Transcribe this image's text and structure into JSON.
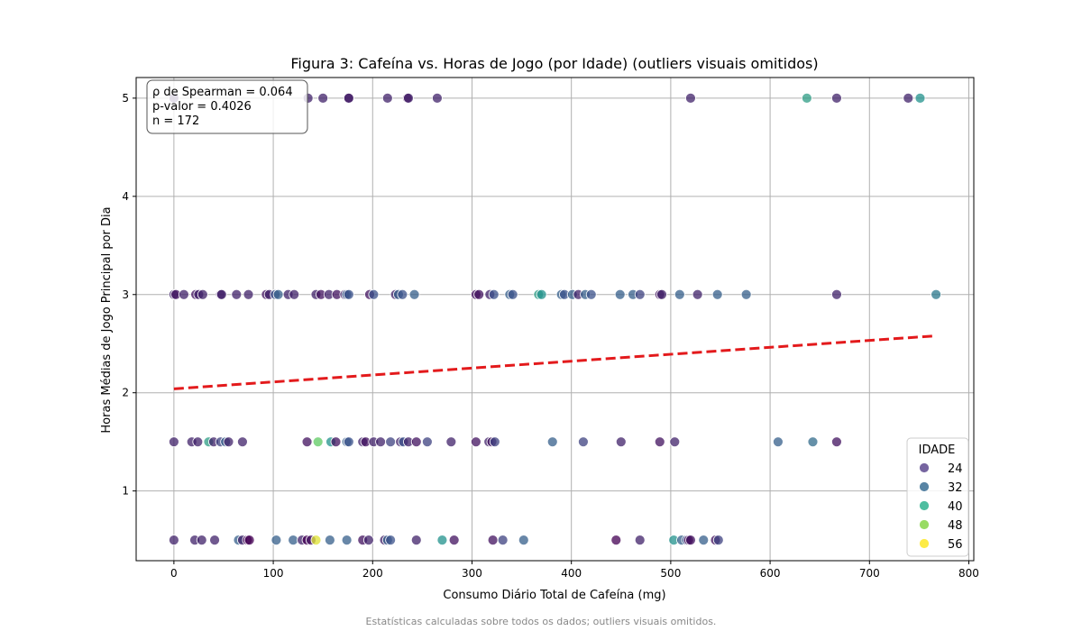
{
  "chart_data": {
    "type": "scatter",
    "title": "Figura 3: Cafeína vs. Horas de Jogo (por Idade) (outliers visuais omitidos)",
    "xlabel": "Consumo Diário Total de Cafeína (mg)",
    "ylabel": "Horas Médias de Jogo Principal por Dia",
    "xlim": [
      -38,
      805
    ],
    "ylim": [
      0.29,
      5.21
    ],
    "xticks": [
      0,
      100,
      200,
      300,
      400,
      500,
      600,
      700,
      800
    ],
    "yticks": [
      1,
      2,
      3,
      4,
      5
    ],
    "grid": true,
    "legend_position": "bottom-right",
    "legend": {
      "title": "IDADE",
      "entries": [
        {
          "label": "24",
          "color": "#5e4a8f"
        },
        {
          "label": "32",
          "color": "#3b6f94"
        },
        {
          "label": "40",
          "color": "#2fb38f"
        },
        {
          "label": "48",
          "color": "#86d549"
        },
        {
          "label": "56",
          "color": "#fde725"
        }
      ]
    },
    "stats_box": [
      "ρ de Spearman = 0.064",
      "p-valor = 0.4026",
      "n = 172"
    ],
    "trend_line": {
      "color": "#e31a1c",
      "style": "dashed",
      "x": [
        0,
        767
      ],
      "y": [
        2.04,
        2.58
      ]
    },
    "points": [
      {
        "x": 0,
        "y": 5,
        "age": 22
      },
      {
        "x": 135,
        "y": 5,
        "age": 22
      },
      {
        "x": 150,
        "y": 5,
        "age": 22
      },
      {
        "x": 176,
        "y": 5,
        "age": 18
      },
      {
        "x": 176,
        "y": 5,
        "age": 22
      },
      {
        "x": 215,
        "y": 5,
        "age": 22
      },
      {
        "x": 235,
        "y": 5,
        "age": 18
      },
      {
        "x": 236,
        "y": 5,
        "age": 22
      },
      {
        "x": 265,
        "y": 5,
        "age": 22
      },
      {
        "x": 520,
        "y": 5,
        "age": 22
      },
      {
        "x": 637,
        "y": 5,
        "age": 40
      },
      {
        "x": 667,
        "y": 5,
        "age": 22
      },
      {
        "x": 739,
        "y": 5,
        "age": 22
      },
      {
        "x": 751,
        "y": 5,
        "age": 38
      },
      {
        "x": 0,
        "y": 3,
        "age": 22
      },
      {
        "x": 2,
        "y": 3,
        "age": 20
      },
      {
        "x": 10,
        "y": 3,
        "age": 22
      },
      {
        "x": 22,
        "y": 3,
        "age": 20
      },
      {
        "x": 25,
        "y": 3,
        "age": 22
      },
      {
        "x": 29,
        "y": 3,
        "age": 22
      },
      {
        "x": 47,
        "y": 3,
        "age": 20
      },
      {
        "x": 48,
        "y": 3,
        "age": 22
      },
      {
        "x": 63,
        "y": 3,
        "age": 22
      },
      {
        "x": 75,
        "y": 3,
        "age": 22
      },
      {
        "x": 93,
        "y": 3,
        "age": 20
      },
      {
        "x": 96,
        "y": 3,
        "age": 22
      },
      {
        "x": 102,
        "y": 3,
        "age": 28
      },
      {
        "x": 105,
        "y": 3,
        "age": 30
      },
      {
        "x": 115,
        "y": 3,
        "age": 22
      },
      {
        "x": 121,
        "y": 3,
        "age": 22
      },
      {
        "x": 143,
        "y": 3,
        "age": 22
      },
      {
        "x": 148,
        "y": 3,
        "age": 20
      },
      {
        "x": 156,
        "y": 3,
        "age": 22
      },
      {
        "x": 164,
        "y": 3,
        "age": 20
      },
      {
        "x": 172,
        "y": 3,
        "age": 22
      },
      {
        "x": 174,
        "y": 3,
        "age": 30
      },
      {
        "x": 176,
        "y": 3,
        "age": 28
      },
      {
        "x": 197,
        "y": 3,
        "age": 20
      },
      {
        "x": 201,
        "y": 3,
        "age": 28
      },
      {
        "x": 223,
        "y": 3,
        "age": 22
      },
      {
        "x": 226,
        "y": 3,
        "age": 30
      },
      {
        "x": 230,
        "y": 3,
        "age": 28
      },
      {
        "x": 242,
        "y": 3,
        "age": 30
      },
      {
        "x": 304,
        "y": 3,
        "age": 20
      },
      {
        "x": 307,
        "y": 3,
        "age": 20
      },
      {
        "x": 318,
        "y": 3,
        "age": 22
      },
      {
        "x": 322,
        "y": 3,
        "age": 28
      },
      {
        "x": 338,
        "y": 3,
        "age": 30
      },
      {
        "x": 341,
        "y": 3,
        "age": 28
      },
      {
        "x": 367,
        "y": 3,
        "age": 40
      },
      {
        "x": 370,
        "y": 3,
        "age": 38
      },
      {
        "x": 390,
        "y": 3,
        "age": 30
      },
      {
        "x": 393,
        "y": 3,
        "age": 28
      },
      {
        "x": 401,
        "y": 3,
        "age": 30
      },
      {
        "x": 407,
        "y": 3,
        "age": 22
      },
      {
        "x": 414,
        "y": 3,
        "age": 30
      },
      {
        "x": 420,
        "y": 3,
        "age": 28
      },
      {
        "x": 449,
        "y": 3,
        "age": 30
      },
      {
        "x": 462,
        "y": 3,
        "age": 30
      },
      {
        "x": 469,
        "y": 3,
        "age": 26
      },
      {
        "x": 489,
        "y": 3,
        "age": 20
      },
      {
        "x": 491,
        "y": 3,
        "age": 22
      },
      {
        "x": 509,
        "y": 3,
        "age": 30
      },
      {
        "x": 527,
        "y": 3,
        "age": 22
      },
      {
        "x": 547,
        "y": 3,
        "age": 30
      },
      {
        "x": 576,
        "y": 3,
        "age": 30
      },
      {
        "x": 667,
        "y": 3,
        "age": 22
      },
      {
        "x": 767,
        "y": 3,
        "age": 34
      },
      {
        "x": 0,
        "y": 1.5,
        "age": 22
      },
      {
        "x": 18,
        "y": 1.5,
        "age": 22
      },
      {
        "x": 24,
        "y": 1.5,
        "age": 22
      },
      {
        "x": 35,
        "y": 1.5,
        "age": 40
      },
      {
        "x": 40,
        "y": 1.5,
        "age": 22
      },
      {
        "x": 47,
        "y": 1.5,
        "age": 26
      },
      {
        "x": 52,
        "y": 1.5,
        "age": 30
      },
      {
        "x": 55,
        "y": 1.5,
        "age": 22
      },
      {
        "x": 69,
        "y": 1.5,
        "age": 22
      },
      {
        "x": 134,
        "y": 1.5,
        "age": 20
      },
      {
        "x": 145,
        "y": 1.5,
        "age": 48
      },
      {
        "x": 158,
        "y": 1.5,
        "age": 38
      },
      {
        "x": 163,
        "y": 1.5,
        "age": 20
      },
      {
        "x": 174,
        "y": 1.5,
        "age": 30
      },
      {
        "x": 176,
        "y": 1.5,
        "age": 28
      },
      {
        "x": 190,
        "y": 1.5,
        "age": 22
      },
      {
        "x": 193,
        "y": 1.5,
        "age": 20
      },
      {
        "x": 201,
        "y": 1.5,
        "age": 22
      },
      {
        "x": 208,
        "y": 1.5,
        "age": 22
      },
      {
        "x": 218,
        "y": 1.5,
        "age": 26
      },
      {
        "x": 228,
        "y": 1.5,
        "age": 22
      },
      {
        "x": 231,
        "y": 1.5,
        "age": 28
      },
      {
        "x": 236,
        "y": 1.5,
        "age": 22
      },
      {
        "x": 244,
        "y": 1.5,
        "age": 20
      },
      {
        "x": 255,
        "y": 1.5,
        "age": 26
      },
      {
        "x": 279,
        "y": 1.5,
        "age": 22
      },
      {
        "x": 304,
        "y": 1.5,
        "age": 20
      },
      {
        "x": 317,
        "y": 1.5,
        "age": 22
      },
      {
        "x": 320,
        "y": 1.5,
        "age": 20
      },
      {
        "x": 323,
        "y": 1.5,
        "age": 26
      },
      {
        "x": 381,
        "y": 1.5,
        "age": 30
      },
      {
        "x": 412,
        "y": 1.5,
        "age": 26
      },
      {
        "x": 450,
        "y": 1.5,
        "age": 22
      },
      {
        "x": 489,
        "y": 1.5,
        "age": 20
      },
      {
        "x": 504,
        "y": 1.5,
        "age": 22
      },
      {
        "x": 608,
        "y": 1.5,
        "age": 30
      },
      {
        "x": 643,
        "y": 1.5,
        "age": 32
      },
      {
        "x": 667,
        "y": 1.5,
        "age": 20
      },
      {
        "x": 0,
        "y": 0.5,
        "age": 22
      },
      {
        "x": 21,
        "y": 0.5,
        "age": 22
      },
      {
        "x": 28,
        "y": 0.5,
        "age": 22
      },
      {
        "x": 41,
        "y": 0.5,
        "age": 22
      },
      {
        "x": 65,
        "y": 0.5,
        "age": 30
      },
      {
        "x": 69,
        "y": 0.5,
        "age": 22
      },
      {
        "x": 74,
        "y": 0.5,
        "age": 18
      },
      {
        "x": 76,
        "y": 0.5,
        "age": 18
      },
      {
        "x": 103,
        "y": 0.5,
        "age": 30
      },
      {
        "x": 120,
        "y": 0.5,
        "age": 30
      },
      {
        "x": 129,
        "y": 0.5,
        "age": 22
      },
      {
        "x": 134,
        "y": 0.5,
        "age": 18
      },
      {
        "x": 138,
        "y": 0.5,
        "age": 20
      },
      {
        "x": 143,
        "y": 0.5,
        "age": 56
      },
      {
        "x": 157,
        "y": 0.5,
        "age": 30
      },
      {
        "x": 174,
        "y": 0.5,
        "age": 30
      },
      {
        "x": 190,
        "y": 0.5,
        "age": 20
      },
      {
        "x": 196,
        "y": 0.5,
        "age": 22
      },
      {
        "x": 212,
        "y": 0.5,
        "age": 22
      },
      {
        "x": 215,
        "y": 0.5,
        "age": 30
      },
      {
        "x": 218,
        "y": 0.5,
        "age": 28
      },
      {
        "x": 244,
        "y": 0.5,
        "age": 22
      },
      {
        "x": 270,
        "y": 0.5,
        "age": 38
      },
      {
        "x": 282,
        "y": 0.5,
        "age": 20
      },
      {
        "x": 321,
        "y": 0.5,
        "age": 20
      },
      {
        "x": 331,
        "y": 0.5,
        "age": 26
      },
      {
        "x": 352,
        "y": 0.5,
        "age": 30
      },
      {
        "x": 445,
        "y": 0.5,
        "age": 18
      },
      {
        "x": 469,
        "y": 0.5,
        "age": 22
      },
      {
        "x": 503,
        "y": 0.5,
        "age": 38
      },
      {
        "x": 511,
        "y": 0.5,
        "age": 30
      },
      {
        "x": 516,
        "y": 0.5,
        "age": 28
      },
      {
        "x": 518,
        "y": 0.5,
        "age": 18
      },
      {
        "x": 520,
        "y": 0.5,
        "age": 20
      },
      {
        "x": 533,
        "y": 0.5,
        "age": 30
      },
      {
        "x": 545,
        "y": 0.5,
        "age": 20
      },
      {
        "x": 548,
        "y": 0.5,
        "age": 26
      }
    ]
  },
  "footnote": "Estatísticas calculadas sobre todos os dados; outliers visuais omitidos."
}
